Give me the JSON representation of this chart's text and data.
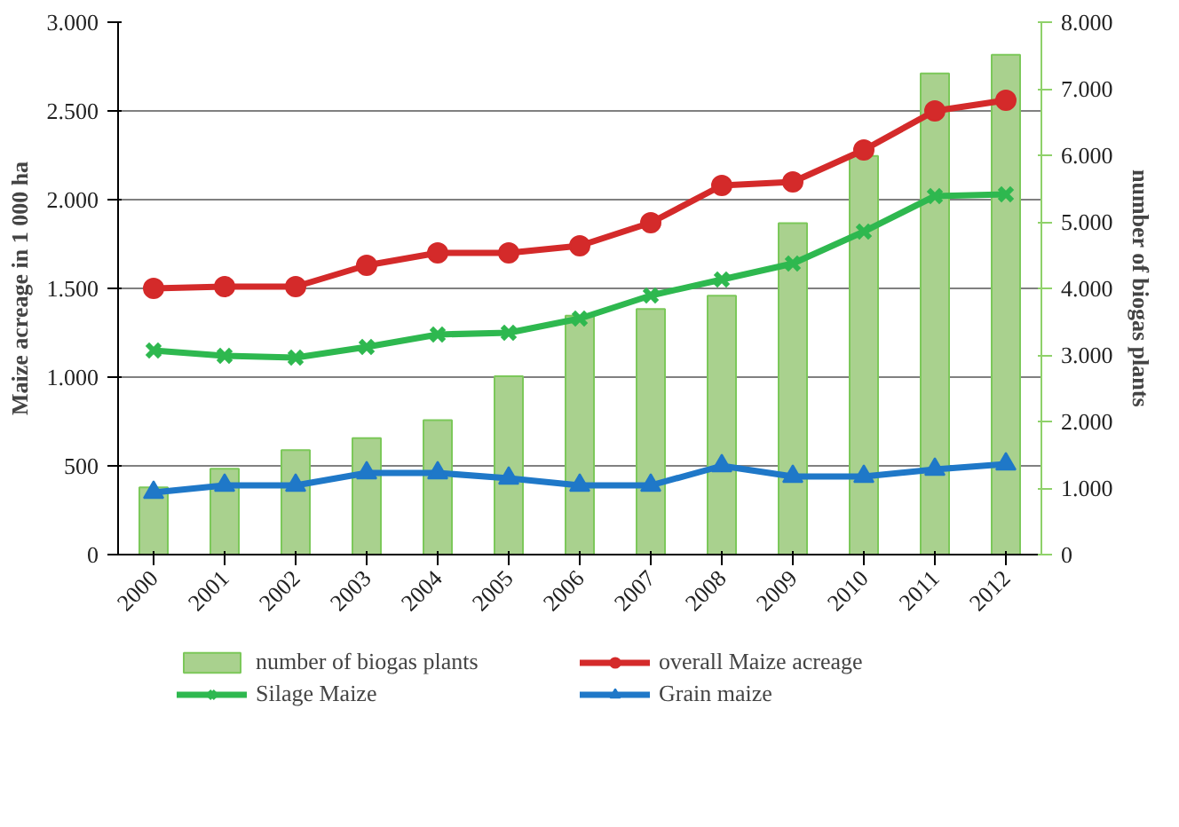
{
  "chart_data": {
    "type": "line",
    "ylabel": "Maize acreage in 1 000 ha",
    "y2label": "number of biogas plants",
    "categories": [
      "2000",
      "2001",
      "2002",
      "2003",
      "2004",
      "2005",
      "2006",
      "2007",
      "2008",
      "2009",
      "2010",
      "2011",
      "2012"
    ],
    "series": [
      {
        "name": "number of biogas plants",
        "type": "bar",
        "axis": "y2",
        "color": "#a9d18e",
        "values": [
          1010,
          1290,
          1570,
          1750,
          2020,
          2680,
          3590,
          3690,
          3890,
          4980,
          5990,
          7230,
          7510
        ]
      },
      {
        "name": "overall Maize acreage",
        "marker": "circle",
        "color": "#d42a2a",
        "values": [
          1500,
          1510,
          1510,
          1630,
          1700,
          1700,
          1740,
          1870,
          2080,
          2100,
          2280,
          2500,
          2560
        ]
      },
      {
        "name": "Silage Maize",
        "marker": "cross",
        "color": "#2eb84f",
        "values": [
          1150,
          1120,
          1110,
          1170,
          1240,
          1250,
          1330,
          1460,
          1550,
          1640,
          1820,
          2020,
          2030
        ]
      },
      {
        "name": "Grain maize",
        "marker": "triangle",
        "color": "#1f78c8",
        "values": [
          350,
          390,
          390,
          460,
          460,
          430,
          390,
          390,
          500,
          440,
          440,
          480,
          510
        ]
      }
    ],
    "ylim": [
      0,
      3000
    ],
    "yticks": [
      0,
      {
        "value": 500,
        "label": "500"
      },
      {
        "value": 1000,
        "label": "1.000"
      },
      {
        "value": 1500,
        "label": "1.500"
      },
      {
        "value": 2000,
        "label": "2.000"
      },
      {
        "value": 2500,
        "label": "2.500"
      },
      {
        "value": 3000,
        "label": "3.000"
      }
    ],
    "y2lim": [
      0,
      8000
    ],
    "y2ticks": [
      0,
      {
        "value": 1000,
        "label": "1.000"
      },
      {
        "value": 2000,
        "label": "2.000"
      },
      {
        "value": 3000,
        "label": "3.000"
      },
      {
        "value": 4000,
        "label": "4.000"
      },
      {
        "value": 5000,
        "label": "5.000"
      },
      {
        "value": 6000,
        "label": "6.000"
      },
      {
        "value": 7000,
        "label": "7.000"
      },
      {
        "value": 8000,
        "label": "8.000"
      }
    ],
    "grid": "y",
    "legend": "bottom"
  }
}
